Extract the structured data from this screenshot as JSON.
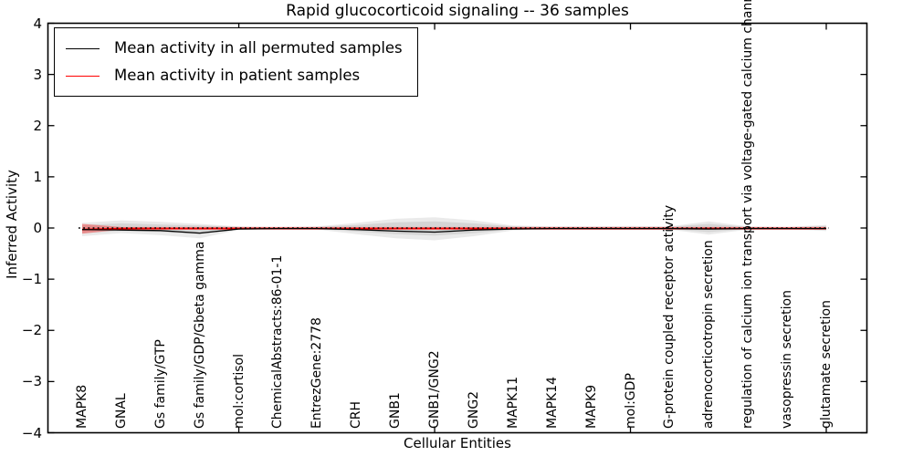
{
  "chart_data": {
    "type": "line",
    "title": "Rapid glucocorticoid signaling -- 36 samples",
    "xlabel": "Cellular Entities",
    "ylabel": "Inferred Activity",
    "ylim": [
      -4,
      4
    ],
    "ytick_values": [
      4,
      3,
      2,
      1,
      0,
      -1,
      -2,
      -3,
      -4
    ],
    "ytick_labels": [
      "4",
      "3",
      "2",
      "1",
      "0",
      "−1",
      "−2",
      "−3",
      "−4"
    ],
    "xtick_marker_indices": [
      4,
      9,
      14,
      19
    ],
    "grid": false,
    "legend_position": "upper left",
    "categories": [
      "MAPK8",
      "GNAL",
      "Gs family/GTP",
      "Gs family/GDP/Gbeta gamma",
      "mol:cortisol",
      "ChemicalAbstracts:86-01-1",
      "EntrezGene:2778",
      "CRH",
      "GNB1",
      "GNB1/GNG2",
      "GNG2",
      "MAPK11",
      "MAPK14",
      "MAPK9",
      "mol:GDP",
      "G-protein coupled receptor activity",
      "adrenocorticotropin secretion",
      "regulation of calcium ion transport via voltage-gated calcium chann",
      "vasopressin secretion",
      "glutamate secretion"
    ],
    "series": [
      {
        "name": "Mean activity in all permuted samples",
        "color": "#000000",
        "values": [
          -0.03,
          -0.04,
          -0.05,
          -0.1,
          -0.02,
          -0.01,
          -0.01,
          -0.03,
          -0.06,
          -0.08,
          -0.04,
          -0.02,
          -0.01,
          -0.01,
          -0.01,
          -0.01,
          -0.02,
          -0.01,
          -0.01,
          -0.01
        ]
      },
      {
        "name": "Mean activity in patient samples",
        "color": "#ff0000",
        "values": [
          -0.03,
          -0.01,
          -0.01,
          -0.01,
          -0.01,
          -0.01,
          -0.01,
          -0.01,
          -0.01,
          -0.01,
          -0.01,
          -0.01,
          -0.01,
          -0.01,
          -0.01,
          -0.01,
          -0.01,
          -0.01,
          -0.01,
          -0.01
        ]
      }
    ],
    "bands": [
      {
        "name": "permuted samples spread (outer)",
        "color": "rgba(140,140,140,0.18)",
        "upper": [
          0.1,
          0.15,
          0.12,
          0.08,
          0.03,
          0.02,
          0.03,
          0.1,
          0.18,
          0.21,
          0.15,
          0.05,
          0.03,
          0.03,
          0.04,
          0.03,
          0.13,
          0.03,
          0.02,
          0.06
        ],
        "lower": [
          -0.16,
          -0.1,
          -0.14,
          -0.2,
          -0.04,
          -0.02,
          -0.03,
          -0.12,
          -0.2,
          -0.24,
          -0.16,
          -0.05,
          -0.03,
          -0.03,
          -0.04,
          -0.03,
          -0.13,
          -0.03,
          -0.02,
          -0.06
        ]
      },
      {
        "name": "permuted samples spread (core)",
        "color": "rgba(120,120,120,0.18)",
        "upper": [
          0.06,
          0.09,
          0.07,
          0.05,
          0.02,
          0.01,
          0.02,
          0.06,
          0.11,
          0.13,
          0.09,
          0.03,
          0.02,
          0.02,
          0.02,
          0.02,
          0.08,
          0.02,
          0.01,
          0.04
        ],
        "lower": [
          -0.1,
          -0.06,
          -0.08,
          -0.12,
          -0.02,
          -0.01,
          -0.02,
          -0.07,
          -0.12,
          -0.15,
          -0.1,
          -0.03,
          -0.02,
          -0.02,
          -0.02,
          -0.02,
          -0.08,
          -0.02,
          -0.01,
          -0.04
        ]
      },
      {
        "name": "patient samples spread",
        "color": "rgba(255,20,20,0.38)",
        "upper": [
          0.08,
          0.02,
          0.02,
          0.02,
          0.02,
          0.02,
          0.02,
          0.02,
          0.02,
          0.02,
          0.02,
          0.02,
          0.02,
          0.02,
          0.02,
          0.02,
          0.02,
          0.02,
          0.02,
          0.02
        ],
        "lower": [
          -0.11,
          -0.03,
          -0.03,
          -0.03,
          -0.03,
          -0.03,
          -0.03,
          -0.03,
          -0.03,
          -0.03,
          -0.03,
          -0.03,
          -0.03,
          -0.03,
          -0.03,
          -0.03,
          -0.03,
          -0.03,
          -0.03,
          -0.03
        ]
      }
    ],
    "zero_reference_line": {
      "value": 0,
      "style": "dotted",
      "color": "#000000"
    }
  }
}
